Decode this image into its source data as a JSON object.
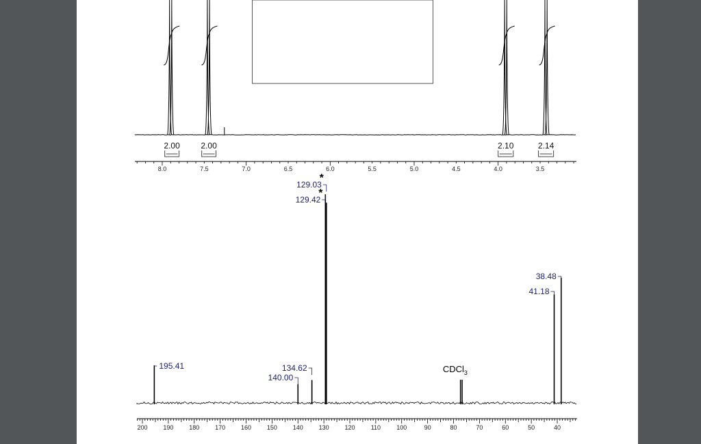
{
  "chart_data": [
    {
      "type": "line",
      "spectrum": "1H NMR",
      "x_reversed": true,
      "xlim": [
        8.4,
        2.8
      ],
      "x_ticks": [
        "8.0",
        "7.5",
        "7.0",
        "6.5",
        "6.0",
        "5.5",
        "5.0",
        "4.5",
        "4.0",
        "3.5"
      ],
      "peaks_ppm": [
        7.9,
        7.45,
        3.91,
        3.43
      ],
      "integrals": [
        {
          "value": "2.00",
          "x_from": 7.97,
          "x_to": 7.8
        },
        {
          "value": "2.00",
          "x_from": 7.53,
          "x_to": 7.36
        },
        {
          "value": "2.10",
          "x_from": 4.0,
          "x_to": 3.82
        },
        {
          "value": "2.14",
          "x_from": 3.52,
          "x_to": 3.34
        }
      ],
      "minor_peak_ppm": 7.26
    },
    {
      "type": "line",
      "spectrum": "13C NMR",
      "x_reversed": true,
      "xlim": [
        202,
        193
      ],
      "x_ticks": [
        "200",
        "190",
        "180",
        "170",
        "160",
        "150",
        "140",
        "130",
        "120",
        "110",
        "100",
        "90",
        "80",
        "70",
        "60",
        "50",
        "40"
      ],
      "peaks": [
        {
          "label": "195.41",
          "ppm": 195.41,
          "relative_height": 0.18
        },
        {
          "label": "140.00",
          "ppm": 140.0,
          "relative_height": 0.09
        },
        {
          "label": "134.62",
          "ppm": 134.62,
          "relative_height": 0.11
        },
        {
          "label": "129.42",
          "ppm": 129.42,
          "relative_height": 1.0,
          "starred": true
        },
        {
          "label": "129.03",
          "ppm": 129.03,
          "relative_height": 0.96,
          "starred": true
        },
        {
          "label": "41.18",
          "ppm": 41.18,
          "relative_height": 0.52
        },
        {
          "label": "38.48",
          "ppm": 38.48,
          "relative_height": 0.6
        }
      ],
      "solvent": {
        "label": "CDCl",
        "subscript": "3",
        "ppm": 77.0
      }
    }
  ]
}
